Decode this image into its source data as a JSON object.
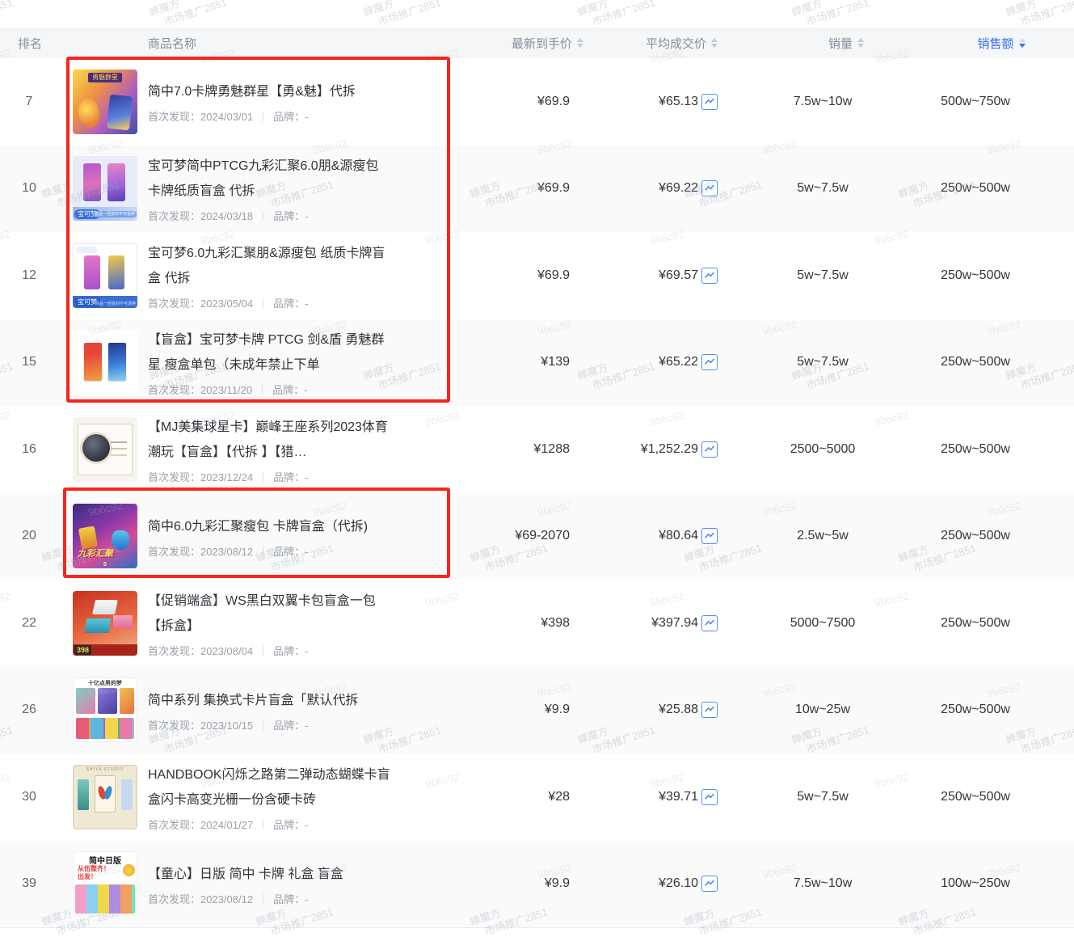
{
  "watermark": {
    "brand_line1": "蝉魔方",
    "brand_line2": "市场推广2851",
    "code": "9b6c92"
  },
  "annotation": {
    "color": "#f5261d",
    "accent": "#3a6ff2"
  },
  "table": {
    "header": {
      "rank": "排名",
      "product": "商品名称",
      "price": "最新到手价",
      "avg_price": "平均成交价",
      "sales": "销量",
      "revenue": "销售额",
      "sort_active_column": "销售额",
      "sort_direction": "desc"
    },
    "meta": {
      "first_seen_label": "首次发现：",
      "separator": "｜",
      "brand_label": "品牌：",
      "brand_value": "-"
    },
    "rows": [
      {
        "rank": "7",
        "title": "简中7.0卡牌勇魅群星【勇&魅】代拆",
        "first_seen": "2024/03/01",
        "price": "¥69.9",
        "avg_price": "¥65.13",
        "sales": "7.5w~10w",
        "revenue": "500w~750w",
        "highlighted": true,
        "thumb_style": "t1",
        "thumb_text1": "勇魅群星",
        "thumb_text2": ""
      },
      {
        "rank": "10",
        "title": "宝可梦简中PTCG九彩汇聚6.0朋&源瘦包 卡牌纸质盲盒 代拆",
        "first_seen": "2024/03/18",
        "price": "¥69.9",
        "avg_price": "¥69.22",
        "sales": "5w~7.5w",
        "revenue": "250w~500w",
        "highlighted": true,
        "thumb_style": "t2",
        "thumb_text1": "宝可梦",
        "thumb_text2": "首品一经拆封不可退换"
      },
      {
        "rank": "12",
        "title": "宝可梦6.0九彩汇聚朋&源瘦包 纸质卡牌盲盒 代拆",
        "first_seen": "2023/05/04",
        "price": "¥69.9",
        "avg_price": "¥69.57",
        "sales": "5w~7.5w",
        "revenue": "250w~500w",
        "highlighted": true,
        "thumb_style": "t3",
        "thumb_text1": "宝可梦",
        "thumb_text2": "商品一经拆封不可退换"
      },
      {
        "rank": "15",
        "title": "【盲盒】宝可梦卡牌 PTCG 剑&盾 勇魅群星 瘦盒单包（未成年禁止下单",
        "first_seen": "2023/11/20",
        "price": "¥139",
        "avg_price": "¥65.22",
        "sales": "5w~7.5w",
        "revenue": "250w~500w",
        "highlighted": true,
        "thumb_style": "t4",
        "thumb_text1": "",
        "thumb_text2": ""
      },
      {
        "rank": "16",
        "title": "【MJ美集球星卡】巅峰王座系列2023体育潮玩【盲盒】【代拆 】【猎…",
        "first_seen": "2023/12/24",
        "price": "¥1288",
        "avg_price": "¥1,252.29",
        "sales": "2500~5000",
        "revenue": "250w~500w",
        "highlighted": false,
        "thumb_style": "t5",
        "thumb_text1": "",
        "thumb_text2": ""
      },
      {
        "rank": "20",
        "title": "简中6.0九彩汇聚瘦包 卡牌盲盒（代拆)",
        "first_seen": "2023/08/12",
        "price": "¥69-2070",
        "avg_price": "¥80.64",
        "sales": "2.5w~5w",
        "revenue": "250w~500w",
        "highlighted": true,
        "thumb_style": "t6",
        "thumb_text1": "九彩汇聚",
        "thumb_text2": "5"
      },
      {
        "rank": "22",
        "title": "【促销端盒】WS黑白双翼卡包盲盒一包【拆盒】",
        "first_seen": "2023/08/04",
        "price": "¥398",
        "avg_price": "¥397.94",
        "sales": "5000~7500",
        "revenue": "250w~500w",
        "highlighted": false,
        "thumb_style": "t7",
        "thumb_text1": "398",
        "thumb_text2": ""
      },
      {
        "rank": "26",
        "title": "简中系列 集换式卡片盲盒「默认代拆",
        "first_seen": "2023/10/15",
        "price": "¥9.9",
        "avg_price": "¥25.88",
        "sales": "10w~25w",
        "revenue": "250w~500w",
        "highlighted": false,
        "thumb_style": "t8",
        "thumb_text1": "十亿点男的梦",
        "thumb_text2": ""
      },
      {
        "rank": "30",
        "title": "HANDBOOK闪烁之路第二弹动态蝴蝶卡盲盒闪卡高变光栅一份含硬卡砖",
        "first_seen": "2024/01/27",
        "price": "¥28",
        "avg_price": "¥39.71",
        "sales": "5w~7.5w",
        "revenue": "250w~500w",
        "highlighted": false,
        "thumb_style": "t9",
        "thumb_text1": "SHIYA STUDIO",
        "thumb_text2": ""
      },
      {
        "rank": "39",
        "title": "【童心】日版 简中 卡牌 礼盒 盲盒",
        "first_seen": "2023/08/12",
        "price": "¥9.9",
        "avg_price": "¥26.10",
        "sales": "7.5w~10w",
        "revenue": "100w~250w",
        "highlighted": false,
        "thumb_style": "t10",
        "thumb_text1": "简中日版",
        "thumb_text2": "从伍整齐！\n出发！"
      }
    ]
  }
}
